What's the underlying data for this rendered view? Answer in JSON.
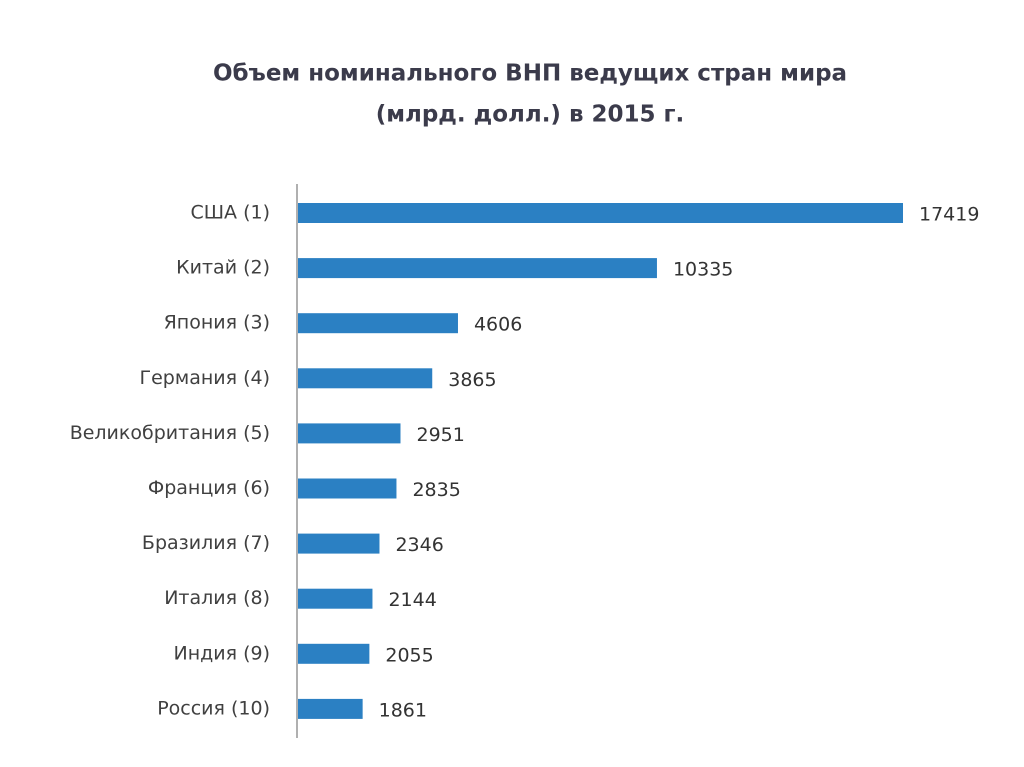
{
  "chart_data": {
    "type": "bar",
    "orientation": "horizontal",
    "title": [
      "Объем номинального ВНП ведущих стран мира",
      "(млрд. долл.) в 2015 г."
    ],
    "categories": [
      "США (1)",
      "Китай (2)",
      "Япония (3)",
      "Германия (4)",
      "Великобритания (5)",
      "Франция (6)",
      "Бразилия (7)",
      "Италия (8)",
      "Индия (9)",
      "Россия (10)"
    ],
    "values": [
      17419,
      10335,
      4606,
      3865,
      2951,
      2835,
      2346,
      2144,
      2055,
      1861
    ],
    "color": "#2b80c3"
  }
}
